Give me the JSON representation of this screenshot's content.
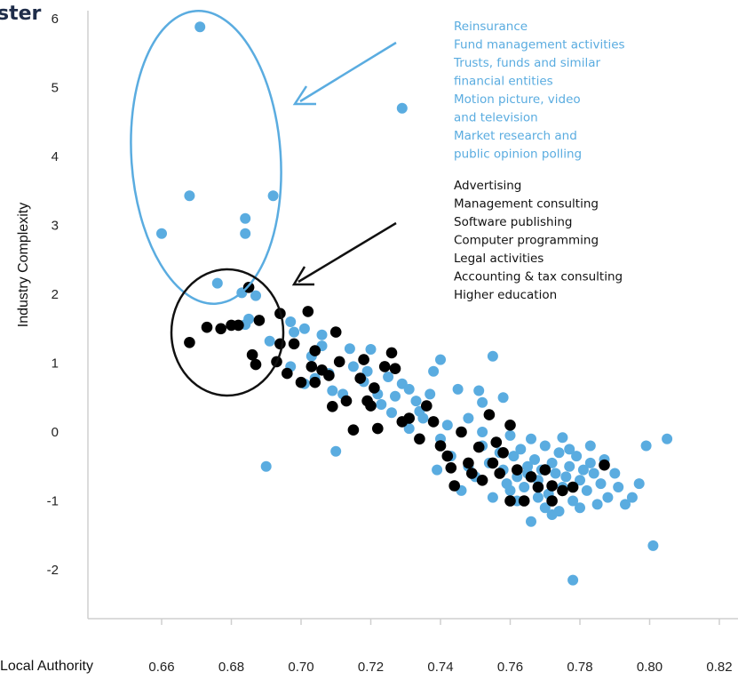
{
  "chart_data": {
    "type": "scatter",
    "title_fragment": "ster",
    "xlabel": "Local Authority",
    "ylabel": "Industry Complexity",
    "xlim": [
      0.645,
      0.82
    ],
    "ylim": [
      -2.7,
      6.2
    ],
    "x_ticks": [
      "0.66",
      "0.68",
      "0.70",
      "0.72",
      "0.74",
      "0.76",
      "0.78",
      "0.80",
      "0.82"
    ],
    "y_ticks": [
      "6",
      "5",
      "4",
      "3",
      "2",
      "1",
      "0",
      "-1",
      "-2"
    ],
    "grid": false,
    "colors": {
      "blue": "#5aace0",
      "black": "#000000",
      "axis": "#cfcfcf"
    },
    "series": [
      {
        "color": "blue",
        "points": [
          [
            0.671,
            5.88
          ],
          [
            0.729,
            4.7
          ],
          [
            0.668,
            3.43
          ],
          [
            0.692,
            3.43
          ],
          [
            0.66,
            2.88
          ],
          [
            0.684,
            3.1
          ],
          [
            0.684,
            2.88
          ],
          [
            0.676,
            2.16
          ],
          [
            0.683,
            2.02
          ],
          [
            0.687,
            1.98
          ],
          [
            0.685,
            1.64
          ],
          [
            0.684,
            1.56
          ],
          [
            0.697,
            1.6
          ],
          [
            0.698,
            1.45
          ],
          [
            0.701,
            1.5
          ],
          [
            0.706,
            1.41
          ],
          [
            0.691,
            1.32
          ],
          [
            0.703,
            1.1
          ],
          [
            0.711,
            1.02
          ],
          [
            0.714,
            1.21
          ],
          [
            0.708,
            0.85
          ],
          [
            0.701,
            0.7
          ],
          [
            0.709,
            0.6
          ],
          [
            0.718,
            0.73
          ],
          [
            0.722,
            0.55
          ],
          [
            0.719,
            0.88
          ],
          [
            0.723,
            0.4
          ],
          [
            0.727,
            0.52
          ],
          [
            0.729,
            0.7
          ],
          [
            0.731,
            0.62
          ],
          [
            0.733,
            0.45
          ],
          [
            0.726,
            0.28
          ],
          [
            0.731,
            0.05
          ],
          [
            0.734,
            0.3
          ],
          [
            0.737,
            0.55
          ],
          [
            0.738,
            0.88
          ],
          [
            0.74,
            1.05
          ],
          [
            0.742,
            0.1
          ],
          [
            0.745,
            0.62
          ],
          [
            0.748,
            0.2
          ],
          [
            0.751,
            0.6
          ],
          [
            0.752,
            0.43
          ],
          [
            0.755,
            1.1
          ],
          [
            0.752,
            0.0
          ],
          [
            0.754,
            0.25
          ],
          [
            0.758,
            0.5
          ],
          [
            0.74,
            -0.1
          ],
          [
            0.743,
            -0.35
          ],
          [
            0.748,
            -0.5
          ],
          [
            0.75,
            -0.65
          ],
          [
            0.752,
            -0.2
          ],
          [
            0.754,
            -0.45
          ],
          [
            0.756,
            -0.15
          ],
          [
            0.757,
            -0.3
          ],
          [
            0.758,
            -0.55
          ],
          [
            0.76,
            -0.05
          ],
          [
            0.761,
            -0.35
          ],
          [
            0.762,
            -0.65
          ],
          [
            0.763,
            -0.25
          ],
          [
            0.764,
            -0.8
          ],
          [
            0.765,
            -0.5
          ],
          [
            0.766,
            -0.1
          ],
          [
            0.767,
            -0.4
          ],
          [
            0.768,
            -0.7
          ],
          [
            0.769,
            -0.55
          ],
          [
            0.77,
            -0.2
          ],
          [
            0.771,
            -0.9
          ],
          [
            0.772,
            -0.45
          ],
          [
            0.773,
            -0.6
          ],
          [
            0.774,
            -0.3
          ],
          [
            0.775,
            -0.8
          ],
          [
            0.776,
            -0.65
          ],
          [
            0.777,
            -0.5
          ],
          [
            0.778,
            -1.0
          ],
          [
            0.779,
            -0.35
          ],
          [
            0.78,
            -0.7
          ],
          [
            0.781,
            -0.55
          ],
          [
            0.782,
            -0.85
          ],
          [
            0.783,
            -0.45
          ],
          [
            0.784,
            -0.6
          ],
          [
            0.785,
            -1.05
          ],
          [
            0.786,
            -0.75
          ],
          [
            0.787,
            -0.4
          ],
          [
            0.788,
            -0.95
          ],
          [
            0.79,
            -0.6
          ],
          [
            0.791,
            -0.8
          ],
          [
            0.793,
            -1.05
          ],
          [
            0.795,
            -0.95
          ],
          [
            0.797,
            -0.75
          ],
          [
            0.799,
            -0.2
          ],
          [
            0.801,
            -1.65
          ],
          [
            0.805,
            -0.1
          ],
          [
            0.775,
            -0.08
          ],
          [
            0.766,
            -1.3
          ],
          [
            0.778,
            -2.15
          ],
          [
            0.71,
            -0.28
          ],
          [
            0.69,
            -0.5
          ],
          [
            0.76,
            -0.85
          ],
          [
            0.755,
            -0.95
          ],
          [
            0.772,
            -1.2
          ],
          [
            0.78,
            -1.1
          ],
          [
            0.765,
            -0.6
          ],
          [
            0.759,
            -0.75
          ],
          [
            0.746,
            -0.85
          ],
          [
            0.762,
            -1.0
          ],
          [
            0.77,
            -1.1
          ],
          [
            0.774,
            -1.15
          ],
          [
            0.768,
            -0.95
          ],
          [
            0.777,
            -0.25
          ],
          [
            0.783,
            -0.2
          ],
          [
            0.739,
            -0.55
          ],
          [
            0.735,
            0.2
          ],
          [
            0.725,
            0.8
          ],
          [
            0.715,
            0.95
          ],
          [
            0.72,
            1.2
          ],
          [
            0.706,
            1.25
          ],
          [
            0.712,
            0.55
          ],
          [
            0.697,
            0.95
          ],
          [
            0.704,
            0.78
          ]
        ]
      },
      {
        "color": "black",
        "points": [
          [
            0.668,
            1.3
          ],
          [
            0.673,
            1.52
          ],
          [
            0.677,
            1.5
          ],
          [
            0.68,
            1.55
          ],
          [
            0.682,
            1.55
          ],
          [
            0.685,
            2.1
          ],
          [
            0.688,
            1.62
          ],
          [
            0.686,
            1.12
          ],
          [
            0.687,
            0.98
          ],
          [
            0.694,
            1.72
          ],
          [
            0.694,
            1.28
          ],
          [
            0.698,
            1.28
          ],
          [
            0.702,
            1.75
          ],
          [
            0.693,
            1.02
          ],
          [
            0.696,
            0.85
          ],
          [
            0.703,
            0.95
          ],
          [
            0.704,
            1.18
          ],
          [
            0.706,
            0.9
          ],
          [
            0.708,
            0.82
          ],
          [
            0.71,
            1.45
          ],
          [
            0.711,
            1.02
          ],
          [
            0.7,
            0.72
          ],
          [
            0.704,
            0.72
          ],
          [
            0.709,
            0.37
          ],
          [
            0.713,
            0.45
          ],
          [
            0.715,
            0.03
          ],
          [
            0.717,
            0.78
          ],
          [
            0.718,
            1.05
          ],
          [
            0.719,
            0.45
          ],
          [
            0.72,
            0.38
          ],
          [
            0.721,
            0.64
          ],
          [
            0.722,
            0.05
          ],
          [
            0.724,
            0.95
          ],
          [
            0.726,
            1.15
          ],
          [
            0.727,
            0.92
          ],
          [
            0.729,
            0.15
          ],
          [
            0.731,
            0.2
          ],
          [
            0.734,
            -0.1
          ],
          [
            0.736,
            0.38
          ],
          [
            0.738,
            0.15
          ],
          [
            0.74,
            -0.2
          ],
          [
            0.742,
            -0.35
          ],
          [
            0.743,
            -0.52
          ],
          [
            0.744,
            -0.78
          ],
          [
            0.746,
            0.0
          ],
          [
            0.748,
            -0.45
          ],
          [
            0.749,
            -0.6
          ],
          [
            0.751,
            -0.22
          ],
          [
            0.752,
            -0.7
          ],
          [
            0.754,
            0.25
          ],
          [
            0.756,
            -0.15
          ],
          [
            0.757,
            -0.6
          ],
          [
            0.758,
            -0.3
          ],
          [
            0.76,
            0.1
          ],
          [
            0.762,
            -0.55
          ],
          [
            0.764,
            -1.0
          ],
          [
            0.768,
            -0.8
          ],
          [
            0.77,
            -0.55
          ],
          [
            0.772,
            -0.78
          ],
          [
            0.775,
            -0.85
          ],
          [
            0.778,
            -0.8
          ],
          [
            0.76,
            -1.0
          ],
          [
            0.766,
            -0.65
          ],
          [
            0.787,
            -0.48
          ],
          [
            0.772,
            -1.0
          ],
          [
            0.755,
            -0.45
          ]
        ]
      }
    ],
    "annotations": {
      "blue_group": [
        "Reinsurance",
        "Fund management activities",
        "Trusts, funds and similar",
        "financial entities",
        "Motion picture, video",
        "and television",
        "Market research and",
        "public opinion polling"
      ],
      "black_group": [
        "Advertising",
        "Management consulting",
        "Software publishing",
        "Computer programming",
        "Legal activities",
        "Accounting & tax consulting",
        "Higher education"
      ]
    }
  }
}
